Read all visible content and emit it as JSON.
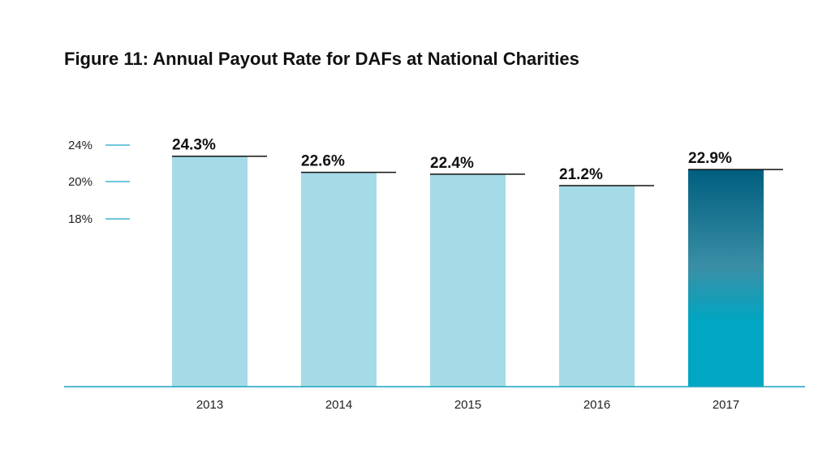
{
  "chart_data": {
    "type": "bar",
    "title": "Figure 11: Annual Payout Rate for DAFs at National Charities",
    "categories": [
      "2013",
      "2014",
      "2015",
      "2016",
      "2017"
    ],
    "values": [
      24.3,
      22.6,
      22.4,
      21.2,
      22.9
    ],
    "value_labels": [
      "24.3%",
      "22.6%",
      "22.4%",
      "21.2%",
      "22.9%"
    ],
    "y_tick_labels": [
      "24%",
      "20%",
      "18%"
    ],
    "xlabel": "",
    "ylabel": "",
    "ylim": [
      0,
      26
    ],
    "grid": false,
    "colors": {
      "bar": "#a5dbe6",
      "highlight_top": "#005e7f",
      "highlight_mid": "#3a8fa6",
      "highlight_bottom": "#00a6c2",
      "axis": "#1aa3c4",
      "value_line": "#111111"
    },
    "highlighted_category": "2017"
  }
}
